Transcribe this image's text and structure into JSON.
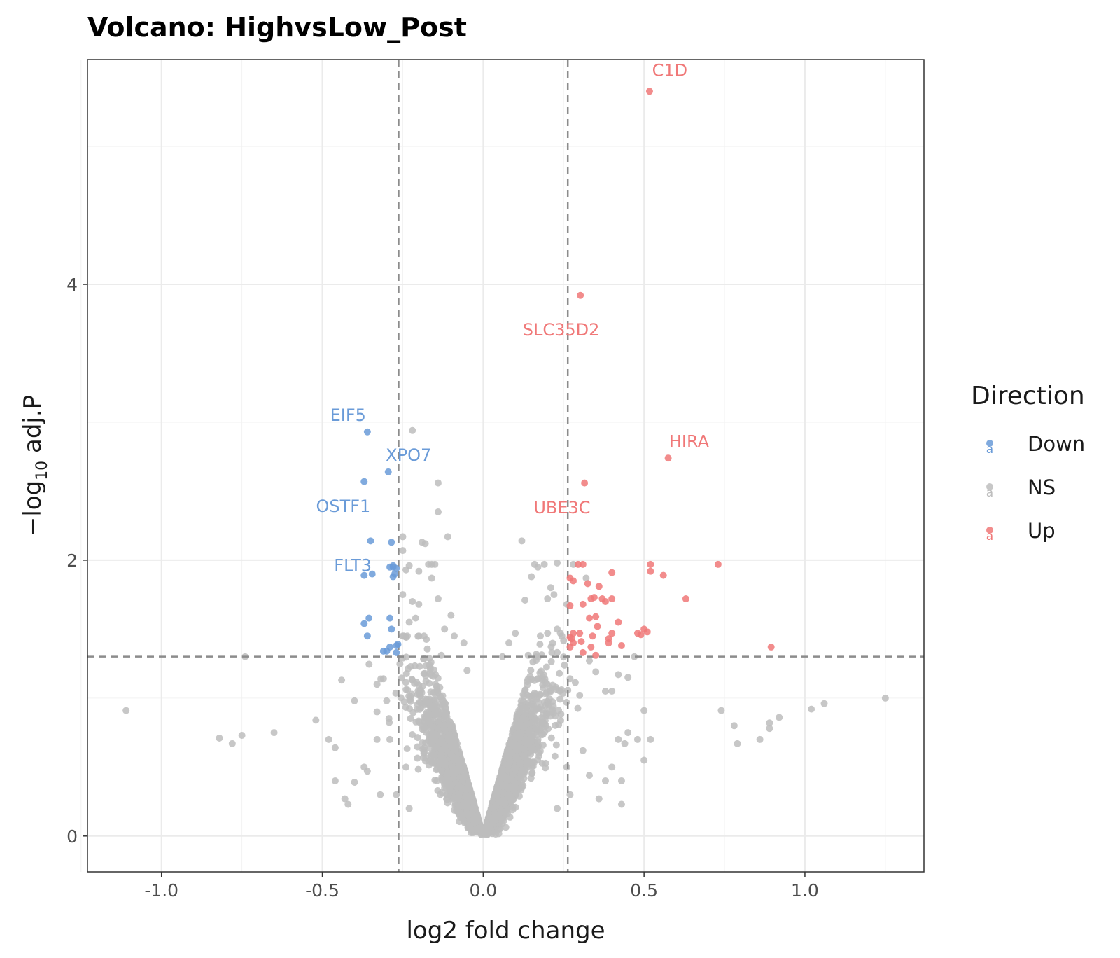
{
  "chart_data": {
    "type": "scatter",
    "title": "Volcano: HighvsLow_Post",
    "xlabel": "log2 fold change",
    "ylabel_main": "−log",
    "ylabel_sub": "10",
    "ylabel_tail": " adj.P",
    "xlim": [
      -1.23,
      1.37
    ],
    "ylim": [
      -0.26,
      5.63
    ],
    "x_ticks": [
      {
        "value": -1.0,
        "label": "-1.0"
      },
      {
        "value": -0.5,
        "label": "-0.5"
      },
      {
        "value": 0.0,
        "label": "0.0"
      },
      {
        "value": 0.5,
        "label": "0.5"
      },
      {
        "value": 1.0,
        "label": "1.0"
      }
    ],
    "y_ticks": [
      {
        "value": 0,
        "label": "0"
      },
      {
        "value": 2,
        "label": "2"
      },
      {
        "value": 4,
        "label": "4"
      }
    ],
    "grid": true,
    "fc_threshold": 0.263,
    "p_threshold": 1.301,
    "legend": {
      "title": "Direction",
      "placement": "right",
      "key_glyph": "a",
      "entries": [
        {
          "name": "Down",
          "color": "#6a9bd8"
        },
        {
          "name": "NS",
          "color": "#bdbdbd"
        },
        {
          "name": "Up",
          "color": "#f07878"
        }
      ]
    },
    "colors": {
      "Down": "#6a9bd8",
      "NS": "#bdbdbd",
      "Up": "#f07878",
      "threshold_line": "#8c8c8c"
    },
    "series": [
      {
        "name": "Up",
        "points": [
          [
            0.517,
            5.4
          ],
          [
            0.302,
            3.92
          ],
          [
            0.575,
            2.74
          ],
          [
            0.315,
            2.56
          ],
          [
            0.73,
            1.97
          ],
          [
            0.52,
            1.97
          ],
          [
            0.52,
            1.92
          ],
          [
            0.56,
            1.89
          ],
          [
            0.63,
            1.72
          ],
          [
            0.895,
            1.37
          ],
          [
            0.295,
            1.97
          ],
          [
            0.31,
            1.97
          ],
          [
            0.4,
            1.91
          ],
          [
            0.27,
            1.87
          ],
          [
            0.28,
            1.85
          ],
          [
            0.325,
            1.83
          ],
          [
            0.36,
            1.81
          ],
          [
            0.335,
            1.72
          ],
          [
            0.345,
            1.73
          ],
          [
            0.37,
            1.72
          ],
          [
            0.38,
            1.7
          ],
          [
            0.4,
            1.72
          ],
          [
            0.27,
            1.67
          ],
          [
            0.31,
            1.68
          ],
          [
            0.33,
            1.58
          ],
          [
            0.35,
            1.59
          ],
          [
            0.42,
            1.55
          ],
          [
            0.355,
            1.52
          ],
          [
            0.4,
            1.47
          ],
          [
            0.39,
            1.43
          ],
          [
            0.48,
            1.47
          ],
          [
            0.49,
            1.46
          ],
          [
            0.5,
            1.5
          ],
          [
            0.51,
            1.48
          ],
          [
            0.3,
            1.47
          ],
          [
            0.27,
            1.44
          ],
          [
            0.28,
            1.47
          ],
          [
            0.28,
            1.4
          ],
          [
            0.305,
            1.41
          ],
          [
            0.335,
            1.37
          ],
          [
            0.34,
            1.45
          ],
          [
            0.43,
            1.38
          ],
          [
            0.31,
            1.33
          ],
          [
            0.35,
            1.31
          ],
          [
            0.27,
            1.37
          ],
          [
            0.275,
            1.43
          ],
          [
            0.39,
            1.4
          ]
        ]
      },
      {
        "name": "Down",
        "points": [
          [
            -0.36,
            2.93
          ],
          [
            -0.295,
            2.64
          ],
          [
            -0.37,
            2.57
          ],
          [
            -0.35,
            2.14
          ],
          [
            -0.285,
            2.13
          ],
          [
            -0.28,
            1.96
          ],
          [
            -0.29,
            1.95
          ],
          [
            -0.27,
            1.94
          ],
          [
            -0.345,
            1.9
          ],
          [
            -0.37,
            1.89
          ],
          [
            -0.275,
            1.9
          ],
          [
            -0.28,
            1.88
          ],
          [
            -0.355,
            1.58
          ],
          [
            -0.37,
            1.54
          ],
          [
            -0.29,
            1.58
          ],
          [
            -0.285,
            1.5
          ],
          [
            -0.36,
            1.45
          ],
          [
            -0.29,
            1.37
          ],
          [
            -0.31,
            1.34
          ],
          [
            -0.265,
            1.39
          ],
          [
            -0.27,
            1.38
          ],
          [
            -0.27,
            1.33
          ],
          [
            -0.28,
            1.95
          ],
          [
            -0.3,
            1.34
          ]
        ]
      }
    ],
    "ns_sample": [
      [
        -1.11,
        0.91
      ],
      [
        -0.82,
        0.71
      ],
      [
        -0.78,
        0.67
      ],
      [
        -0.75,
        0.73
      ],
      [
        -0.65,
        0.75
      ],
      [
        -0.52,
        0.84
      ],
      [
        -0.48,
        0.7
      ],
      [
        -0.46,
        0.64
      ],
      [
        -0.44,
        1.13
      ],
      [
        -0.43,
        0.27
      ],
      [
        -0.42,
        0.23
      ],
      [
        -0.4,
        0.98
      ],
      [
        -0.46,
        0.4
      ],
      [
        -0.4,
        0.39
      ],
      [
        -0.37,
        0.5
      ],
      [
        -0.36,
        0.47
      ],
      [
        -0.74,
        1.3
      ],
      [
        -0.33,
        0.9
      ],
      [
        -0.33,
        1.1
      ],
      [
        -0.32,
        0.3
      ],
      [
        -0.33,
        0.7
      ],
      [
        -0.31,
        1.14
      ],
      [
        -0.3,
        0.98
      ],
      [
        -0.29,
        0.7
      ],
      [
        -0.22,
        2.94
      ],
      [
        -0.14,
        2.56
      ],
      [
        -0.14,
        2.35
      ],
      [
        -0.11,
        2.17
      ],
      [
        -0.19,
        2.13
      ],
      [
        -0.18,
        2.12
      ],
      [
        -0.25,
        2.17
      ],
      [
        -0.25,
        2.07
      ],
      [
        -0.17,
        1.97
      ],
      [
        -0.16,
        1.97
      ],
      [
        -0.15,
        1.97
      ],
      [
        -0.23,
        1.96
      ],
      [
        -0.24,
        1.93
      ],
      [
        -0.2,
        1.92
      ],
      [
        -0.16,
        1.87
      ],
      [
        -0.25,
        1.75
      ],
      [
        -0.14,
        1.72
      ],
      [
        -0.22,
        1.7
      ],
      [
        -0.2,
        1.68
      ],
      [
        -0.23,
        1.55
      ],
      [
        -0.21,
        1.58
      ],
      [
        -0.1,
        1.6
      ],
      [
        -0.09,
        1.45
      ],
      [
        -0.2,
        1.45
      ],
      [
        0.12,
        2.14
      ],
      [
        0.16,
        1.97
      ],
      [
        0.17,
        1.95
      ],
      [
        0.19,
        1.97
      ],
      [
        0.23,
        1.98
      ],
      [
        0.21,
        1.8
      ],
      [
        0.15,
        1.88
      ],
      [
        0.13,
        1.71
      ],
      [
        0.1,
        1.47
      ],
      [
        0.2,
        1.47
      ],
      [
        0.23,
        1.5
      ],
      [
        0.24,
        1.47
      ],
      [
        0.28,
        1.97
      ],
      [
        0.32,
        1.87
      ],
      [
        0.26,
        1.68
      ],
      [
        0.22,
        1.75
      ],
      [
        0.2,
        1.72
      ],
      [
        0.3,
        1.02
      ],
      [
        0.33,
        1.27
      ],
      [
        0.35,
        1.19
      ],
      [
        0.38,
        1.05
      ],
      [
        0.4,
        1.05
      ],
      [
        0.42,
        1.17
      ],
      [
        0.45,
        1.15
      ],
      [
        0.47,
        1.3
      ],
      [
        0.5,
        0.91
      ],
      [
        0.45,
        0.75
      ],
      [
        0.42,
        0.7
      ],
      [
        0.48,
        0.7
      ],
      [
        0.52,
        0.7
      ],
      [
        0.5,
        0.55
      ],
      [
        0.44,
        0.67
      ],
      [
        0.4,
        0.5
      ],
      [
        0.38,
        0.4
      ],
      [
        0.36,
        0.27
      ],
      [
        0.43,
        0.4
      ],
      [
        0.43,
        0.23
      ],
      [
        0.33,
        0.44
      ],
      [
        0.31,
        0.62
      ],
      [
        0.74,
        0.91
      ],
      [
        0.78,
        0.8
      ],
      [
        0.79,
        0.67
      ],
      [
        0.86,
        0.7
      ],
      [
        0.89,
        0.78
      ],
      [
        0.89,
        0.82
      ],
      [
        0.92,
        0.86
      ],
      [
        1.02,
        0.92
      ],
      [
        1.06,
        0.96
      ],
      [
        1.25,
        1.0
      ],
      [
        -0.12,
        1.5
      ],
      [
        -0.06,
        1.4
      ],
      [
        0.08,
        1.4
      ],
      [
        0.06,
        1.3
      ],
      [
        -0.05,
        1.2
      ],
      [
        -0.13,
        1.31
      ],
      [
        0.14,
        1.31
      ],
      [
        -0.22,
        1.13
      ],
      [
        0.27,
        1.14
      ],
      [
        -0.24,
        0.5
      ],
      [
        0.26,
        0.5
      ],
      [
        -0.27,
        0.3
      ],
      [
        0.27,
        0.3
      ],
      [
        -0.23,
        0.2
      ],
      [
        0.23,
        0.2
      ]
    ],
    "labels": [
      {
        "text": "C1D",
        "x": 0.517,
        "y": 5.4,
        "dx": 0.063,
        "dy": 0.11,
        "group": "Up"
      },
      {
        "text": "SLC35D2",
        "x": 0.302,
        "y": 3.92,
        "dx": -0.06,
        "dy": -0.29,
        "group": "Up"
      },
      {
        "text": "HIRA",
        "x": 0.575,
        "y": 2.74,
        "dx": 0.065,
        "dy": 0.08,
        "group": "Up"
      },
      {
        "text": "UBE3C",
        "x": 0.315,
        "y": 2.56,
        "dx": -0.07,
        "dy": -0.22,
        "group": "Up"
      },
      {
        "text": "EIF5",
        "x": -0.36,
        "y": 2.93,
        "dx": -0.06,
        "dy": 0.08,
        "group": "Down"
      },
      {
        "text": "XPO7",
        "x": -0.295,
        "y": 2.64,
        "dx": 0.063,
        "dy": 0.08,
        "group": "Down"
      },
      {
        "text": "OSTF1",
        "x": -0.37,
        "y": 2.57,
        "dx": -0.065,
        "dy": -0.22,
        "group": "Down"
      },
      {
        "text": "FLT3",
        "x": -0.345,
        "y": 1.9,
        "dx": -0.06,
        "dy": 0.02,
        "group": "Down"
      }
    ]
  }
}
